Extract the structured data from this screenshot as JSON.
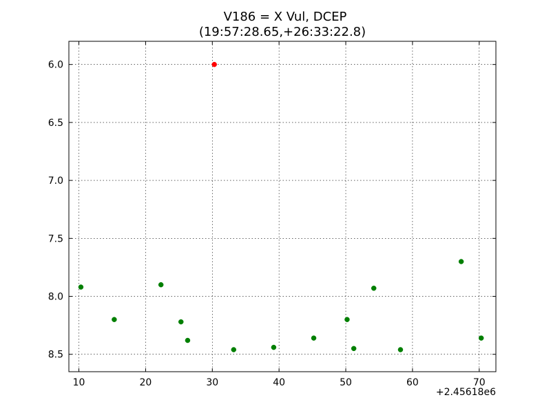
{
  "chart_data": {
    "type": "scatter",
    "title": "V186 = X Vul, DCEP",
    "subtitle": "(19:57:28.65,+26:33:22.8)",
    "xlabel": "",
    "ylabel": "",
    "x_offset_label": "+2.45618e6",
    "xlim": [
      8.5,
      72.5
    ],
    "ylim": [
      8.65,
      5.8
    ],
    "y_inverted": true,
    "grid": true,
    "grid_style": "dotted",
    "x_ticks": [
      10,
      20,
      30,
      40,
      50,
      60,
      70
    ],
    "x_tick_labels": [
      "10",
      "20",
      "30",
      "40",
      "50",
      "60",
      "70"
    ],
    "y_ticks": [
      6.0,
      6.5,
      7.0,
      7.5,
      8.0,
      8.5
    ],
    "y_tick_labels": [
      "6.0",
      "6.5",
      "7.0",
      "7.5",
      "8.0",
      "8.5"
    ],
    "series": [
      {
        "color": "#007f00",
        "x": [
          10.3,
          15.3,
          22.3,
          25.3,
          26.3,
          33.2,
          39.2,
          45.2,
          50.2,
          51.2,
          54.2,
          58.2,
          67.3,
          70.3
        ],
        "y": [
          7.92,
          8.2,
          7.9,
          8.22,
          8.38,
          8.46,
          8.44,
          8.36,
          8.2,
          8.45,
          7.93,
          8.46,
          7.7,
          8.36
        ]
      },
      {
        "color": "#ff0000",
        "x": [
          30.3
        ],
        "y": [
          6.0
        ]
      }
    ]
  }
}
